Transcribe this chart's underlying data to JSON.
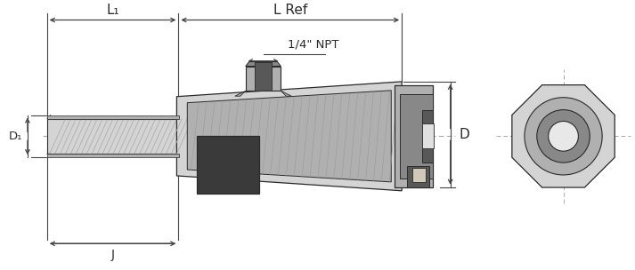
{
  "bg_color": "#ffffff",
  "line_color": "#2a2a2a",
  "dim_color": "#444444",
  "cgl": "#d4d4d4",
  "cgm": "#b0b0b0",
  "cgd": "#888888",
  "cgdd": "#585858",
  "cgddd": "#3a3a3a",
  "white": "#ffffff",
  "labels": {
    "L1": "L₁",
    "LRef": "L Ref",
    "D1": "D₁",
    "D": "D",
    "J": "J",
    "NPT": "1/4\" NPT"
  }
}
